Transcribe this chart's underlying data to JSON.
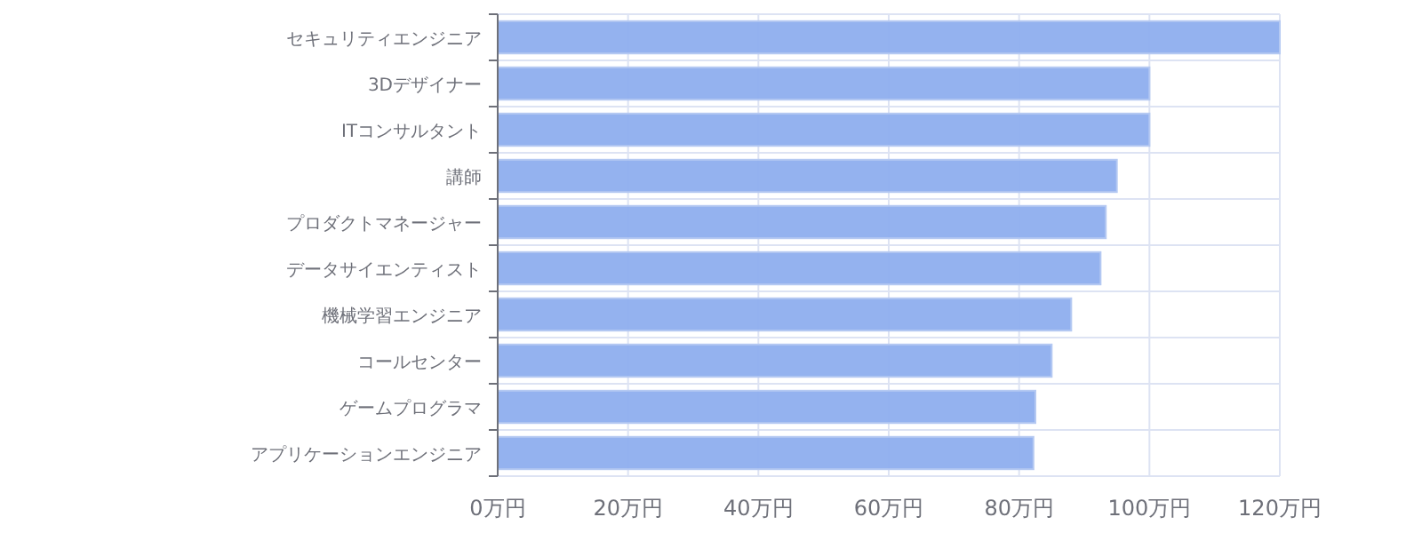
{
  "chart_data": {
    "type": "bar",
    "orientation": "horizontal",
    "categories": [
      "セキュリティエンジニア",
      "3Dデザイナー",
      "ITコンサルタント",
      "講師",
      "プロダクトマネージャー",
      "データサイエンティスト",
      "機械学習エンジニア",
      "コールセンター",
      "ゲームプログラマ",
      "アプリケーションエンジニア"
    ],
    "values": [
      120,
      100,
      100,
      95,
      93.3,
      92.5,
      88,
      85,
      82.5,
      82.2
    ],
    "color": "#8eaeee",
    "xlim": [
      0,
      120
    ],
    "xticks": [
      {
        "value": 0,
        "label": "0万円"
      },
      {
        "value": 20,
        "label": "20万円"
      },
      {
        "value": 40,
        "label": "40万円"
      },
      {
        "value": 60,
        "label": "60万円"
      },
      {
        "value": 80,
        "label": "80万円"
      },
      {
        "value": 100,
        "label": "100万円"
      },
      {
        "value": 120,
        "label": "120万円"
      }
    ],
    "grid": true
  }
}
